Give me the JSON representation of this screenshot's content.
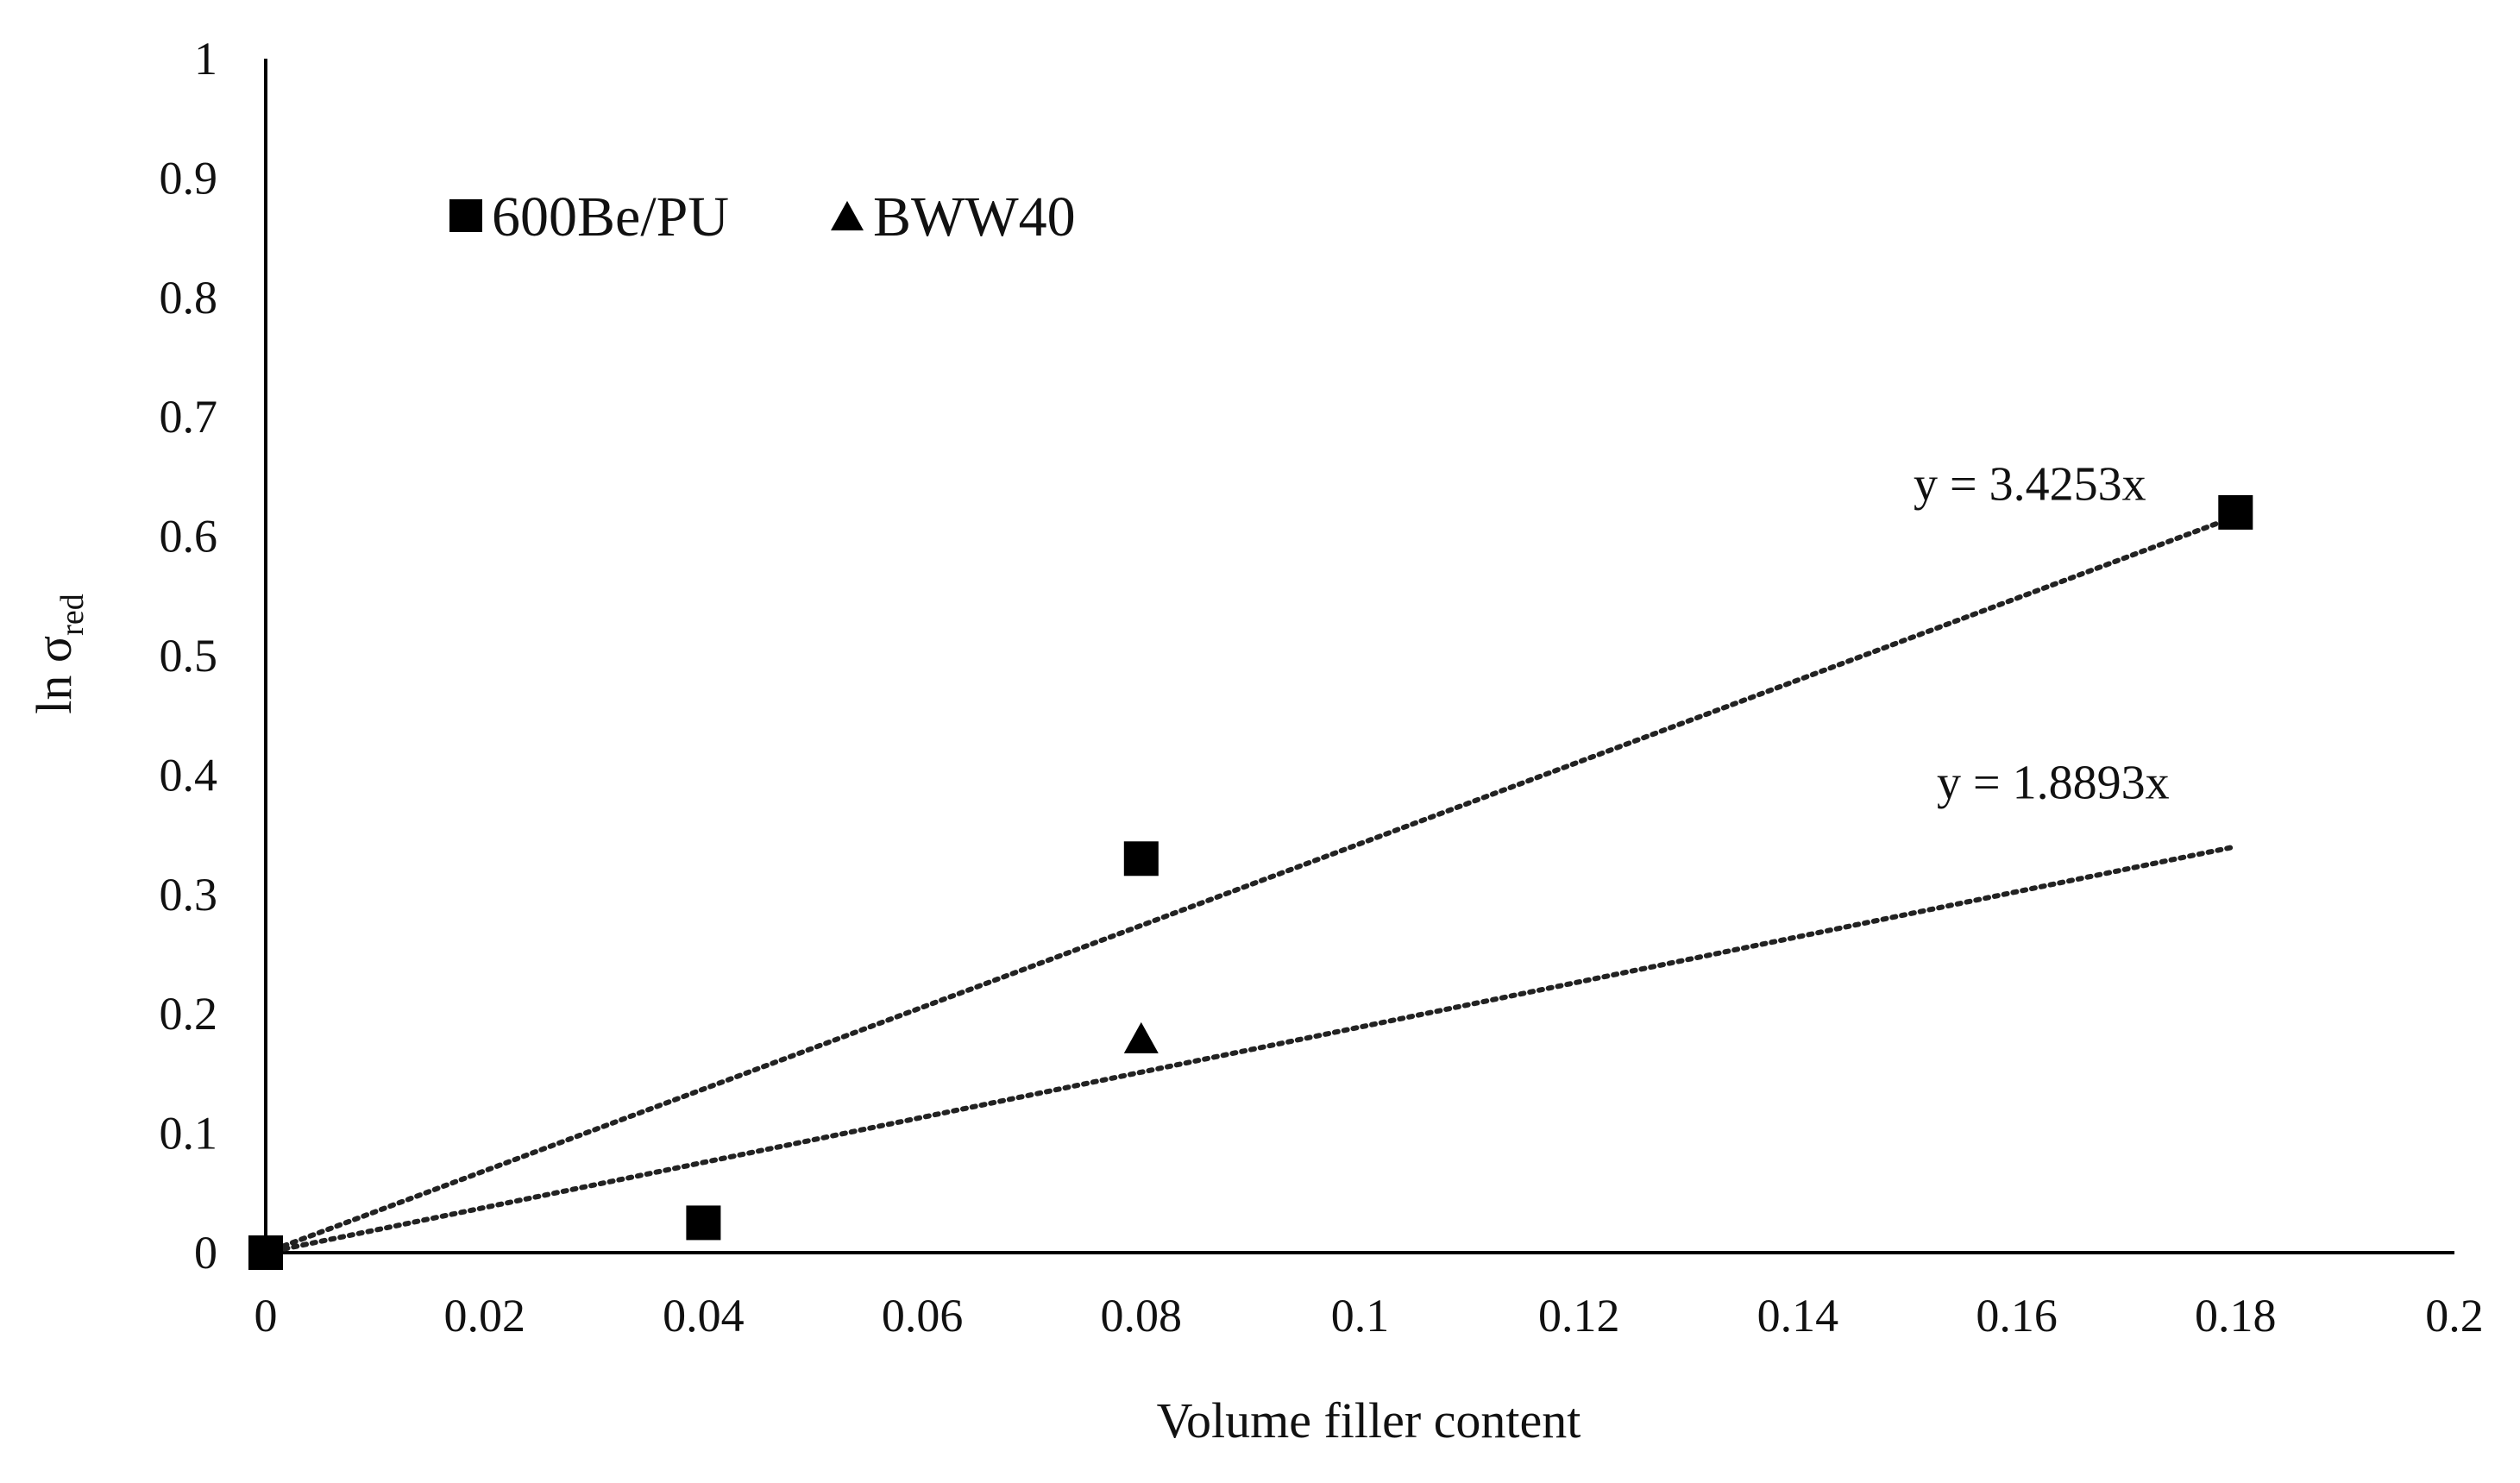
{
  "chart_data": {
    "type": "scatter",
    "title": "",
    "xlabel": "Volume filler content",
    "ylabel": {
      "main": "ln σ",
      "subscript": "red"
    },
    "xlim": [
      0,
      0.2
    ],
    "ylim": [
      0,
      1
    ],
    "x_ticks": [
      "0",
      "0.02",
      "0.04",
      "0.06",
      "0.08",
      "0.1",
      "0.12",
      "0.14",
      "0.16",
      "0.18",
      "0.2"
    ],
    "y_ticks": [
      "0",
      "0.1",
      "0.2",
      "0.3",
      "0.4",
      "0.5",
      "0.6",
      "0.7",
      "0.8",
      "0.9",
      "1"
    ],
    "grid": false,
    "legend": {
      "placement": "top-left",
      "orientation": "horizontal"
    },
    "series": [
      {
        "name": "600Be/PU",
        "marker": "square",
        "color": "#000000",
        "points": [
          {
            "x": 0,
            "y": 0
          },
          {
            "x": 0.04,
            "y": 0.025
          },
          {
            "x": 0.08,
            "y": 0.33
          },
          {
            "x": 0.18,
            "y": 0.62
          }
        ],
        "trendline": {
          "slope": 3.4253,
          "x_range": [
            0,
            0.18
          ],
          "style": "dotted",
          "equation": "y = 3.4253x"
        }
      },
      {
        "name": "BWW40",
        "marker": "triangle",
        "color": "#000000",
        "points": [
          {
            "x": 0,
            "y": 0
          },
          {
            "x": 0.08,
            "y": 0.18
          }
        ],
        "trendline": {
          "slope": 1.8893,
          "x_range": [
            0,
            0.18
          ],
          "style": "dotted",
          "equation": "y = 1.8893x"
        }
      }
    ]
  }
}
